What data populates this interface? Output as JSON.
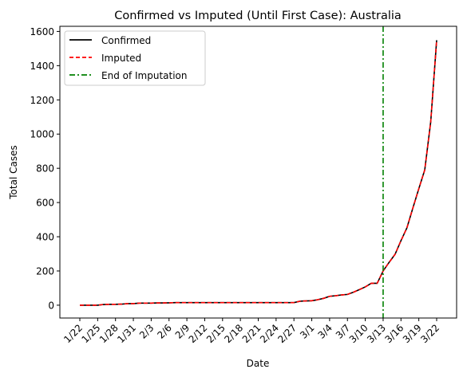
{
  "chart_data": {
    "type": "line",
    "title": "Confirmed vs Imputed (Until First Case): Australia",
    "xlabel": "Date",
    "ylabel": "Total Cases",
    "ylim": [
      -75,
      1630
    ],
    "y_ticks": [
      0,
      200,
      400,
      600,
      800,
      1000,
      1200,
      1400,
      1600
    ],
    "x_tick_labels": [
      "1/22",
      "1/25",
      "1/28",
      "1/31",
      "2/3",
      "2/6",
      "2/9",
      "2/12",
      "2/15",
      "2/18",
      "2/21",
      "2/24",
      "2/27",
      "3/1",
      "3/4",
      "3/7",
      "3/10",
      "3/13",
      "3/16",
      "3/19",
      "3/22"
    ],
    "x_tick_step": 3,
    "categories": [
      "1/22",
      "1/23",
      "1/24",
      "1/25",
      "1/26",
      "1/27",
      "1/28",
      "1/29",
      "1/30",
      "1/31",
      "2/1",
      "2/2",
      "2/3",
      "2/4",
      "2/5",
      "2/6",
      "2/7",
      "2/8",
      "2/9",
      "2/10",
      "2/11",
      "2/12",
      "2/13",
      "2/14",
      "2/15",
      "2/16",
      "2/17",
      "2/18",
      "2/19",
      "2/20",
      "2/21",
      "2/22",
      "2/23",
      "2/24",
      "2/25",
      "2/26",
      "2/27",
      "2/28",
      "2/29",
      "3/1",
      "3/2",
      "3/3",
      "3/4",
      "3/5",
      "3/6",
      "3/7",
      "3/8",
      "3/9",
      "3/10",
      "3/11",
      "3/12",
      "3/13",
      "3/14",
      "3/15",
      "3/16",
      "3/17",
      "3/18",
      "3/19",
      "3/20",
      "3/21",
      "3/22"
    ],
    "series": [
      {
        "name": "Confirmed",
        "color": "#000000",
        "dash": "solid",
        "values": [
          0,
          0,
          0,
          0,
          4,
          5,
          5,
          6,
          9,
          9,
          12,
          12,
          12,
          13,
          13,
          14,
          15,
          15,
          15,
          15,
          15,
          15,
          15,
          15,
          15,
          15,
          15,
          15,
          15,
          15,
          15,
          15,
          15,
          15,
          15,
          15,
          15,
          23,
          25,
          26,
          32,
          40,
          52,
          55,
          60,
          63,
          76,
          91,
          107,
          128,
          128,
          200,
          250,
          297,
          377,
          452,
          568,
          681,
          791,
          1071,
          1549
        ]
      },
      {
        "name": "Imputed",
        "color": "#ff0000",
        "dash": "dashed",
        "values": [
          0,
          0,
          0,
          0,
          4,
          5,
          5,
          6,
          9,
          9,
          12,
          12,
          12,
          13,
          13,
          14,
          15,
          15,
          15,
          15,
          15,
          15,
          15,
          15,
          15,
          15,
          15,
          15,
          15,
          15,
          15,
          15,
          15,
          15,
          15,
          15,
          15,
          23,
          25,
          26,
          32,
          40,
          52,
          55,
          60,
          63,
          76,
          91,
          107,
          128,
          128,
          200,
          250,
          297,
          377,
          452,
          568,
          681,
          791,
          1071,
          1549
        ]
      }
    ],
    "vline": {
      "name": "End of Imputation",
      "x": "3/13",
      "color": "#008000",
      "dash": "dash-dot"
    },
    "legend": {
      "position": "top-left"
    },
    "grid": false
  }
}
